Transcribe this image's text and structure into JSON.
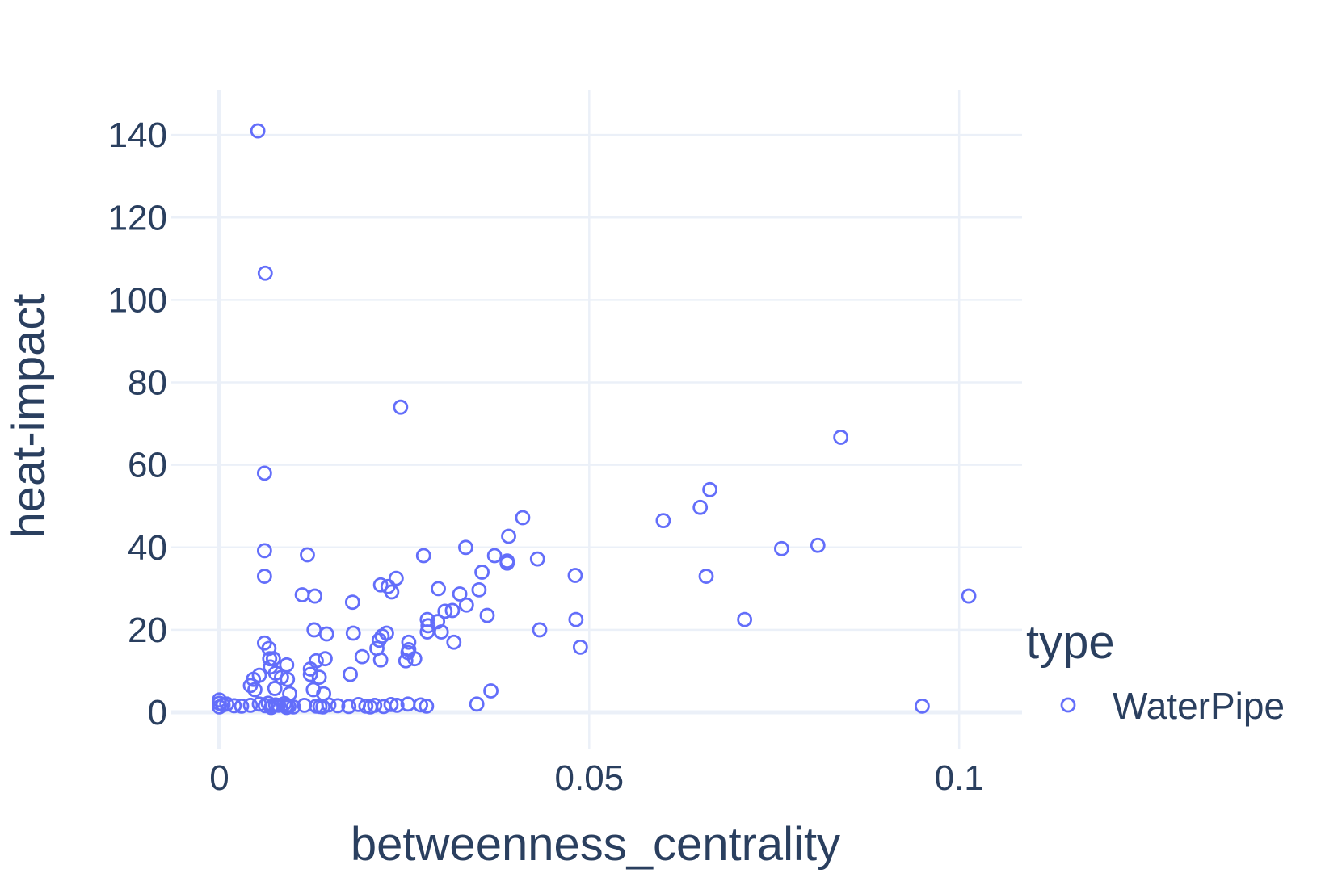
{
  "chart_data": {
    "type": "scatter",
    "xlabel": "betweenness_centrality",
    "ylabel": "heat-impact",
    "xlim": [
      -0.0065,
      0.1085
    ],
    "ylim": [
      -9,
      151
    ],
    "xticks": [
      0,
      0.05,
      0.1
    ],
    "xtick_labels": [
      "0",
      "0.05",
      "0.1"
    ],
    "yticks": [
      0,
      20,
      40,
      60,
      80,
      100,
      120,
      140
    ],
    "ytick_labels": [
      "0",
      "20",
      "40",
      "60",
      "80",
      "100",
      "120",
      "140"
    ],
    "grid": true,
    "legend": {
      "title": "type",
      "position": "right"
    },
    "series": [
      {
        "name": "WaterPipe",
        "color": "#636efa",
        "marker": "open-circle",
        "points": [
          [
            0.0052,
            141
          ],
          [
            0.0062,
            106.5
          ],
          [
            0.0245,
            74
          ],
          [
            0.0061,
            58
          ],
          [
            0.0061,
            39.2
          ],
          [
            0.0061,
            33
          ],
          [
            0.0119,
            38.2
          ],
          [
            0.0112,
            28.5
          ],
          [
            0.0129,
            28.2
          ],
          [
            0.0128,
            20
          ],
          [
            0.0145,
            19
          ],
          [
            0.018,
            26.7
          ],
          [
            0.0181,
            19.2
          ],
          [
            0.0218,
            30.9
          ],
          [
            0.0228,
            30.5
          ],
          [
            0.0233,
            29.2
          ],
          [
            0.0239,
            32.5
          ],
          [
            0.022,
            18.5
          ],
          [
            0.0216,
            17.5
          ],
          [
            0.0213,
            15.5
          ],
          [
            0.0218,
            12.7
          ],
          [
            0.0226,
            19.2
          ],
          [
            0.0193,
            13.5
          ],
          [
            0.0177,
            9.2
          ],
          [
            0.0276,
            38
          ],
          [
            0.0296,
            30
          ],
          [
            0.0281,
            22.5
          ],
          [
            0.0282,
            21
          ],
          [
            0.0281,
            19.5
          ],
          [
            0.0295,
            22
          ],
          [
            0.03,
            19.5
          ],
          [
            0.0305,
            24.5
          ],
          [
            0.0315,
            24.7
          ],
          [
            0.0325,
            28.7
          ],
          [
            0.0333,
            40
          ],
          [
            0.0334,
            26
          ],
          [
            0.0317,
            17
          ],
          [
            0.0351,
            29.7
          ],
          [
            0.0355,
            34
          ],
          [
            0.0362,
            23.5
          ],
          [
            0.0372,
            38
          ],
          [
            0.0389,
            36.7
          ],
          [
            0.0389,
            36.2
          ],
          [
            0.0391,
            42.7
          ],
          [
            0.041,
            47.2
          ],
          [
            0.043,
            37.2
          ],
          [
            0.0433,
            20
          ],
          [
            0.0481,
            33.2
          ],
          [
            0.0482,
            22.5
          ],
          [
            0.0488,
            15.8
          ],
          [
            0.06,
            46.5
          ],
          [
            0.065,
            49.7
          ],
          [
            0.0663,
            54
          ],
          [
            0.0658,
            33
          ],
          [
            0.071,
            22.5
          ],
          [
            0.076,
            39.7
          ],
          [
            0.0809,
            40.5
          ],
          [
            0.084,
            66.7
          ],
          [
            0.1013,
            28.2
          ],
          [
            0.095,
            1.5
          ],
          [
            0.0367,
            5.2
          ],
          [
            0.0348,
            2
          ],
          [
            0.028,
            1.5
          ],
          [
            0.0255,
            2
          ],
          [
            0.0255,
            14.5
          ],
          [
            0.0256,
            17
          ],
          [
            0.0256,
            15.2
          ],
          [
            0.0264,
            13
          ],
          [
            0.0252,
            12.5
          ],
          [
            0.0061,
            16.8
          ],
          [
            0.0067,
            15.5
          ],
          [
            0.0068,
            13
          ],
          [
            0.0073,
            13
          ],
          [
            0.0069,
            11
          ],
          [
            0.0076,
            9.5
          ],
          [
            0.0091,
            11.5
          ],
          [
            0.0092,
            8
          ],
          [
            0.0075,
            5.8
          ],
          [
            0.0054,
            9
          ],
          [
            0.0046,
            8
          ],
          [
            0.0042,
            6.5
          ],
          [
            0.0048,
            5.5
          ],
          [
            0.0084,
            8.5
          ],
          [
            0.0123,
            10.5
          ],
          [
            0.0123,
            9.2
          ],
          [
            0.0131,
            12.5
          ],
          [
            0.0143,
            13
          ],
          [
            0.0135,
            8.5
          ],
          [
            0.0127,
            5.5
          ],
          [
            0.0141,
            4.5
          ],
          [
            0.0054,
            2
          ],
          [
            0.0062,
            1.6
          ],
          [
            0.007,
            1.2
          ],
          [
            0.008,
            1.7
          ],
          [
            0.009,
            1.5
          ],
          [
            0.01,
            1.3
          ],
          [
            0.0115,
            1.7
          ],
          [
            0.0131,
            1.5
          ],
          [
            0.014,
            1.3
          ],
          [
            0.0148,
            1.8
          ],
          [
            0.016,
            1.6
          ],
          [
            0.0175,
            1.4
          ],
          [
            0.0188,
            1.9
          ],
          [
            0.0198,
            1.5
          ],
          [
            0.021,
            1.7
          ],
          [
            0.0222,
            1.4
          ],
          [
            0.0232,
            1.9
          ],
          [
            0.024,
            1.7
          ],
          [
            0.0272,
            1.8
          ],
          [
            0.0,
            3
          ],
          [
            0.0,
            2.2
          ],
          [
            0.0,
            1.3
          ],
          [
            0.0005,
            1.8
          ],
          [
            0.001,
            2
          ],
          [
            0.002,
            1.6
          ],
          [
            0.003,
            1.5
          ],
          [
            0.0042,
            1.7
          ],
          [
            0.0066,
            2.2
          ],
          [
            0.0076,
            1.8
          ],
          [
            0.0088,
            2.1
          ],
          [
            0.0094,
            1.4
          ],
          [
            0.0136,
            1.4
          ],
          [
            0.0204,
            1.3
          ],
          [
            0.0095,
            4.5
          ],
          [
            0.0091,
            1.2
          ],
          [
            0.0072,
            1.6
          ]
        ]
      }
    ]
  }
}
